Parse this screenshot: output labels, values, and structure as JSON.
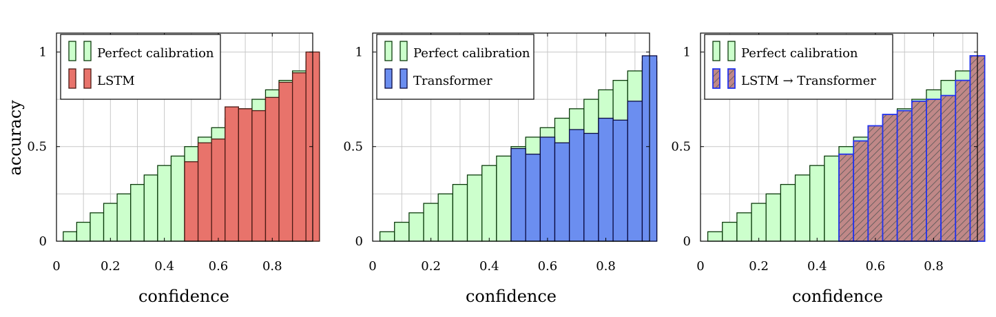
{
  "figure": {
    "ylabel": "accuracy"
  },
  "colors": {
    "perfect_fill": "#ccffcc",
    "perfect_stroke": "#0a3a0a",
    "lstm_fill": "#e8736b",
    "lstm_stroke": "#4a1a14",
    "transformer_fill": "#6b8ef0",
    "transformer_stroke": "#0a0a40",
    "hatch_fill": "#c08888",
    "hatch_line": "#555555",
    "hatch_stroke": "#2233ee",
    "grid": "#c8c8c8"
  },
  "chart_data": [
    {
      "type": "bar",
      "xlabel": "confidence",
      "ylabel": "accuracy",
      "xlim": [
        0,
        0.95
      ],
      "ylim": [
        0,
        1.1
      ],
      "xticks": [
        "0",
        "0.2",
        "0.4",
        "0.6",
        "0.8"
      ],
      "yticks": [
        "0",
        "0.5",
        "1"
      ],
      "grid": true,
      "legend_position": "top-left",
      "bin_width": 0.05,
      "bin_centers": [
        0.05,
        0.1,
        0.15,
        0.2,
        0.25,
        0.3,
        0.35,
        0.4,
        0.45,
        0.5,
        0.55,
        0.6,
        0.65,
        0.7,
        0.75,
        0.8,
        0.85,
        0.9,
        0.95
      ],
      "series": [
        {
          "name": "Perfect calibration",
          "style": "perfect",
          "values": [
            0.05,
            0.1,
            0.15,
            0.2,
            0.25,
            0.3,
            0.35,
            0.4,
            0.45,
            0.5,
            0.55,
            0.6,
            0.65,
            0.7,
            0.75,
            0.8,
            0.85,
            0.9,
            0.95
          ]
        },
        {
          "name": "LSTM",
          "style": "lstm",
          "values": [
            null,
            null,
            null,
            null,
            null,
            null,
            null,
            null,
            null,
            0.42,
            0.52,
            0.54,
            0.71,
            0.7,
            0.69,
            0.76,
            0.84,
            0.89,
            1.0
          ]
        }
      ]
    },
    {
      "type": "bar",
      "xlabel": "confidence",
      "ylabel": "",
      "xlim": [
        0,
        0.95
      ],
      "ylim": [
        0,
        1.1
      ],
      "xticks": [
        "0",
        "0.2",
        "0.4",
        "0.6",
        "0.8"
      ],
      "yticks": [
        "0",
        "0.5",
        "1"
      ],
      "grid": true,
      "legend_position": "top-left",
      "bin_width": 0.05,
      "bin_centers": [
        0.05,
        0.1,
        0.15,
        0.2,
        0.25,
        0.3,
        0.35,
        0.4,
        0.45,
        0.5,
        0.55,
        0.6,
        0.65,
        0.7,
        0.75,
        0.8,
        0.85,
        0.9,
        0.95
      ],
      "series": [
        {
          "name": "Perfect calibration",
          "style": "perfect",
          "values": [
            0.05,
            0.1,
            0.15,
            0.2,
            0.25,
            0.3,
            0.35,
            0.4,
            0.45,
            0.5,
            0.55,
            0.6,
            0.65,
            0.7,
            0.75,
            0.8,
            0.85,
            0.9,
            0.95
          ]
        },
        {
          "name": "Transformer",
          "style": "transformer",
          "values": [
            null,
            null,
            null,
            null,
            null,
            null,
            null,
            null,
            null,
            0.49,
            0.46,
            0.55,
            0.52,
            0.59,
            0.57,
            0.65,
            0.64,
            0.74,
            0.98
          ]
        }
      ]
    },
    {
      "type": "bar",
      "xlabel": "confidence",
      "ylabel": "",
      "xlim": [
        0,
        0.95
      ],
      "ylim": [
        0,
        1.1
      ],
      "xticks": [
        "0",
        "0.2",
        "0.4",
        "0.6",
        "0.8"
      ],
      "yticks": [
        "0",
        "0.5",
        "1"
      ],
      "grid": true,
      "legend_position": "top-left",
      "bin_width": 0.05,
      "bin_centers": [
        0.05,
        0.1,
        0.15,
        0.2,
        0.25,
        0.3,
        0.35,
        0.4,
        0.45,
        0.5,
        0.55,
        0.6,
        0.65,
        0.7,
        0.75,
        0.8,
        0.85,
        0.9,
        0.95
      ],
      "series": [
        {
          "name": "Perfect calibration",
          "style": "perfect",
          "values": [
            0.05,
            0.1,
            0.15,
            0.2,
            0.25,
            0.3,
            0.35,
            0.4,
            0.45,
            0.5,
            0.55,
            0.6,
            0.65,
            0.7,
            0.75,
            0.8,
            0.85,
            0.9,
            0.95
          ]
        },
        {
          "name": "LSTM → Transformer",
          "style": "hatch",
          "values": [
            null,
            null,
            null,
            null,
            null,
            null,
            null,
            null,
            null,
            0.46,
            0.53,
            0.61,
            0.67,
            0.69,
            0.74,
            0.75,
            0.77,
            0.85,
            0.98
          ]
        }
      ]
    }
  ]
}
